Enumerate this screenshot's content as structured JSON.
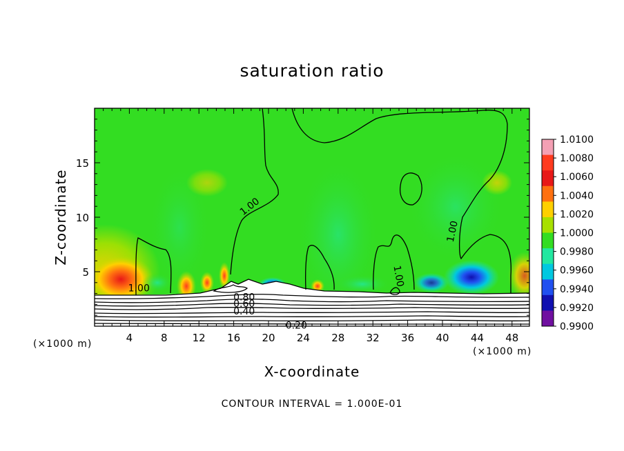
{
  "chart_data": {
    "type": "heatmap",
    "title": "saturation ratio",
    "xlabel": "X-coordinate",
    "ylabel": "Z-coordinate",
    "x_unit_label": "(×1000 m)",
    "x_unit_label_right": "(×1000 m)",
    "xlim": [
      0,
      50
    ],
    "ylim": [
      0,
      20
    ],
    "x_ticks": [
      4,
      8,
      12,
      16,
      20,
      24,
      28,
      32,
      36,
      40,
      44,
      48
    ],
    "y_ticks": [
      5,
      10,
      15
    ],
    "colorbar": {
      "min": 0.99,
      "max": 1.01,
      "tick_labels": [
        "1.0100",
        "1.0080",
        "1.0060",
        "1.0040",
        "1.0020",
        "1.0000",
        "0.9980",
        "0.9960",
        "0.9940",
        "0.9920",
        "0.9900"
      ],
      "colors": [
        "#f4a0b4",
        "#ff3b1f",
        "#e81818",
        "#ff7010",
        "#ffd000",
        "#a8e000",
        "#33dd22",
        "#22e8a0",
        "#00c8e0",
        "#2050f0",
        "#1010b0",
        "#7010a0"
      ]
    },
    "contour_labels": [
      {
        "text": "1.00",
        "x": 17.8,
        "z": 11.0,
        "angle": -38
      },
      {
        "text": "1.00",
        "x": 41.1,
        "z": 8.7,
        "angle": -78
      },
      {
        "text": "1.00",
        "x": 35.0,
        "z": 4.6,
        "angle": 80
      },
      {
        "text": "1.00",
        "x": 5.1,
        "z": 3.5,
        "angle": 0
      },
      {
        "text": "0.80",
        "x": 17.2,
        "z": 2.7,
        "angle": 0
      },
      {
        "text": "0.60",
        "x": 17.2,
        "z": 2.1,
        "angle": 0
      },
      {
        "text": "0.40",
        "x": 17.2,
        "z": 1.4,
        "angle": 0
      },
      {
        "text": "0.20",
        "x": 23.2,
        "z": 0.1,
        "angle": 0
      }
    ],
    "contour_interval_text": "CONTOUR INTERVAL = 1.000E-01",
    "grid": false,
    "legend": "right colorbar"
  }
}
